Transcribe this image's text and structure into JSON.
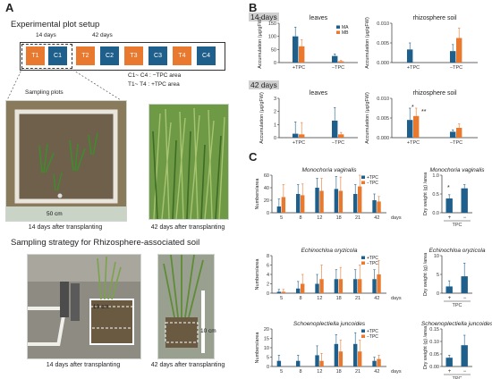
{
  "panel_a": {
    "letter": "A",
    "setup_title": "Experimental plot setup",
    "period_14": "14 days",
    "period_42": "42 days",
    "plots": [
      {
        "label": "T1",
        "kind": "tpc"
      },
      {
        "label": "C1",
        "kind": "control"
      },
      {
        "label": "T2",
        "kind": "tpc"
      },
      {
        "label": "C2",
        "kind": "control"
      },
      {
        "label": "T3",
        "kind": "tpc"
      },
      {
        "label": "C3",
        "kind": "control"
      },
      {
        "label": "T4",
        "kind": "tpc"
      },
      {
        "label": "C4",
        "kind": "control"
      }
    ],
    "legend_control": "C1~ C4 : −TPC area",
    "legend_treated": "T1~ T4 : +TPC area",
    "sampling_plots_label": "Sampling plots",
    "scale_50cm": "50 cm",
    "caption_14": "14 days after transplanting",
    "caption_42": "42 days after transplanting",
    "rhizo_title": "Sampling strategy for Rhizosphere-associated soil",
    "scale_10cm_a": "10 cm",
    "scale_10cm_b": "10 cm",
    "caption_14b": "14 days after transplanting",
    "caption_42b": "42 days after transplanting"
  },
  "panel_b": {
    "letter": "B",
    "row_14": "14 days",
    "row_42": "42 days",
    "title_leaves": "leaves",
    "title_rhizo": "rhizosphere soil",
    "ylabel": "Accumulation (μg/gFW)",
    "xcats": [
      "+TPC",
      "−TPC"
    ],
    "legend": [
      "MA",
      "MB"
    ],
    "ticks_leaves_14": [
      "0",
      "50",
      "100",
      "150"
    ],
    "ticks_rhizo_14": [
      "0.000",
      "0.005",
      "0.010"
    ],
    "ticks_leaves_42": [
      "0",
      "1",
      "2",
      "3"
    ],
    "ticks_rhizo_42": [
      "0.000",
      "0.005",
      "0.010"
    ],
    "sig_a": "*",
    "sig_b": "**"
  },
  "panel_c": {
    "letter": "C",
    "species": [
      "Monochoria vaginalis",
      "Echinochloa oryzicola",
      "Schoenoplectiella juncoides"
    ],
    "numbers_ylabel": "Numbers/area",
    "dryweight_ylabel": "Dry weight (g) /area",
    "days_ticks": [
      "5",
      "8",
      "12",
      "18",
      "21",
      "42"
    ],
    "days_unit": "days",
    "legend": [
      "+TPC",
      "−TPC"
    ],
    "mono_ticks": [
      "0",
      "20",
      "40",
      "60"
    ],
    "echino_ticks": [
      "0",
      "2",
      "4",
      "6",
      "8"
    ],
    "schoeno_ticks": [
      "0",
      "5",
      "10",
      "15",
      "20"
    ],
    "dw_mono_ticks": [
      "0.0",
      "0.5",
      "1.0"
    ],
    "dw_echino_ticks": [
      "0",
      "5",
      "10"
    ],
    "dw_schoeno_ticks": [
      "0.00",
      "0.05",
      "0.10",
      "0.15"
    ],
    "dw_cats": [
      "+",
      "−"
    ],
    "tpc_label": "TPC",
    "sig": "*"
  },
  "colors": {
    "tpc": "#e8792f",
    "control": "#1f5f8b"
  },
  "chart_data": [
    {
      "type": "bar",
      "title": "leaves",
      "group": "14 days",
      "ylabel": "Accumulation (μg/gFW)",
      "categories": [
        "+TPC",
        "−TPC"
      ],
      "ylim": [
        0,
        150
      ],
      "series": [
        {
          "name": "MA",
          "values": [
            100,
            25
          ],
          "errors": [
            35,
            8
          ]
        },
        {
          "name": "MB",
          "values": [
            62,
            5
          ],
          "errors": [
            25,
            3
          ]
        }
      ]
    },
    {
      "type": "bar",
      "title": "rhizosphere soil",
      "group": "14 days",
      "ylabel": "Accumulation (μg/gFW)",
      "categories": [
        "+TPC",
        "−TPC"
      ],
      "ylim": [
        0,
        0.012
      ],
      "series": [
        {
          "name": "MA",
          "values": [
            0.004,
            0.0035
          ],
          "errors": [
            0.002,
            0.002
          ]
        },
        {
          "name": "MB",
          "values": [
            0,
            0.0075
          ],
          "errors": [
            0,
            0.003
          ]
        }
      ]
    },
    {
      "type": "bar",
      "title": "leaves",
      "group": "42 days",
      "ylabel": "Accumulation (μg/gFW)",
      "categories": [
        "+TPC",
        "−TPC"
      ],
      "ylim": [
        0,
        3
      ],
      "series": [
        {
          "name": "MA",
          "values": [
            0.3,
            1.3
          ],
          "errors": [
            0.9,
            1.0
          ]
        },
        {
          "name": "MB",
          "values": [
            0.25,
            0.25
          ],
          "errors": [
            0.9,
            0.15
          ]
        }
      ]
    },
    {
      "type": "bar",
      "title": "rhizosphere soil",
      "group": "42 days",
      "ylabel": "Accumulation (μg/gFW)",
      "categories": [
        "+TPC",
        "−TPC"
      ],
      "ylim": [
        0,
        0.01
      ],
      "series": [
        {
          "name": "MA",
          "values": [
            0.0045,
            0.0015
          ],
          "errors": [
            0.003,
            0.0005
          ]
        },
        {
          "name": "MB",
          "values": [
            0.0055,
            0.0025
          ],
          "errors": [
            0.002,
            0.001
          ]
        }
      ]
    },
    {
      "type": "bar",
      "title": "Monochoria vaginalis",
      "ylabel": "Numbers/area",
      "xlabel": "days",
      "categories": [
        "5",
        "8",
        "12",
        "18",
        "21",
        "42"
      ],
      "ylim": [
        0,
        60
      ],
      "series": [
        {
          "name": "+TPC",
          "values": [
            10,
            30,
            40,
            38,
            30,
            20
          ],
          "errors": [
            12,
            15,
            15,
            20,
            15,
            10
          ]
        },
        {
          "name": "−TPC",
          "values": [
            25,
            28,
            35,
            35,
            42,
            18
          ],
          "errors": [
            20,
            18,
            20,
            22,
            25,
            8
          ]
        }
      ]
    },
    {
      "type": "bar",
      "title": "Monochoria vaginalis",
      "ylabel": "Dry weight (g) /area",
      "xlabel": "TPC",
      "categories": [
        "+",
        "−"
      ],
      "ylim": [
        0,
        1.0
      ],
      "series": [
        {
          "name": "",
          "values": [
            0.38,
            0.65
          ],
          "errors": [
            0.1,
            0.1
          ]
        }
      ]
    },
    {
      "type": "bar",
      "title": "Echinochloa oryzicola",
      "ylabel": "Numbers/area",
      "xlabel": "days",
      "categories": [
        "5",
        "8",
        "12",
        "18",
        "21",
        "42"
      ],
      "ylim": [
        0,
        8
      ],
      "series": [
        {
          "name": "+TPC",
          "values": [
            0.3,
            1,
            2,
            3,
            3,
            3
          ],
          "errors": [
            0.5,
            1.5,
            2,
            2,
            2,
            2
          ]
        },
        {
          "name": "−TPC",
          "values": [
            0.3,
            2,
            3,
            3,
            3,
            4
          ],
          "errors": [
            0.5,
            2,
            3,
            2.5,
            3,
            3
          ]
        }
      ]
    },
    {
      "type": "bar",
      "title": "Echinochloa oryzicola",
      "ylabel": "Dry weight (g) /area",
      "xlabel": "TPC",
      "categories": [
        "+",
        "−"
      ],
      "ylim": [
        0,
        10
      ],
      "series": [
        {
          "name": "",
          "values": [
            1.8,
            4.5
          ],
          "errors": [
            1.5,
            3.5
          ]
        }
      ]
    },
    {
      "type": "bar",
      "title": "Schoenoplectiella juncoides",
      "ylabel": "Numbers/area",
      "xlabel": "days",
      "categories": [
        "5",
        "8",
        "12",
        "18",
        "21",
        "42"
      ],
      "ylim": [
        0,
        20
      ],
      "series": [
        {
          "name": "+TPC",
          "values": [
            3,
            3,
            6,
            12,
            12,
            3
          ],
          "errors": [
            3,
            3,
            5,
            5,
            6,
            2
          ]
        },
        {
          "name": "−TPC",
          "values": [
            0,
            0,
            3,
            8,
            8,
            4
          ],
          "errors": [
            0,
            0,
            4,
            6,
            6,
            2
          ]
        }
      ]
    },
    {
      "type": "bar",
      "title": "Schoenoplectiella juncoides",
      "ylabel": "Dry weight (g) /area",
      "xlabel": "TPC",
      "categories": [
        "+",
        "−"
      ],
      "ylim": [
        0,
        0.15
      ],
      "series": [
        {
          "name": "",
          "values": [
            0.035,
            0.085
          ],
          "errors": [
            0.01,
            0.04
          ]
        }
      ]
    }
  ]
}
